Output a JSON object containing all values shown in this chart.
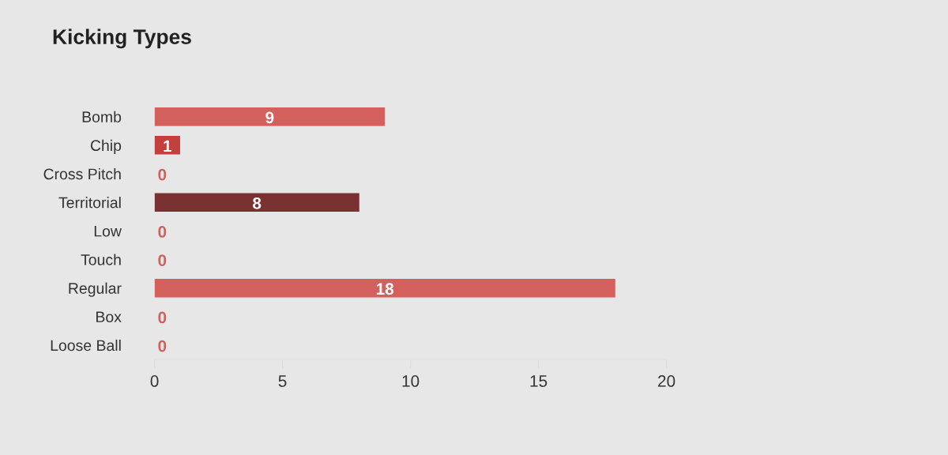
{
  "chart_data": {
    "type": "bar",
    "orientation": "horizontal",
    "title": "Kicking Types",
    "categories": [
      "Bomb",
      "Chip",
      "Cross Pitch",
      "Territorial",
      "Low",
      "Touch",
      "Regular",
      "Box",
      "Loose Ball"
    ],
    "values": [
      9,
      1,
      0,
      8,
      0,
      0,
      18,
      0,
      0
    ],
    "colors": [
      "#d4605e",
      "#c4403f",
      "#d4605e",
      "#7a3131",
      "#d4605e",
      "#d4605e",
      "#d4605e",
      "#d4605e",
      "#d4605e"
    ],
    "xlim": [
      0,
      20
    ],
    "xticks": [
      0,
      5,
      10,
      15,
      20
    ],
    "data_labels": true,
    "grid": false
  }
}
